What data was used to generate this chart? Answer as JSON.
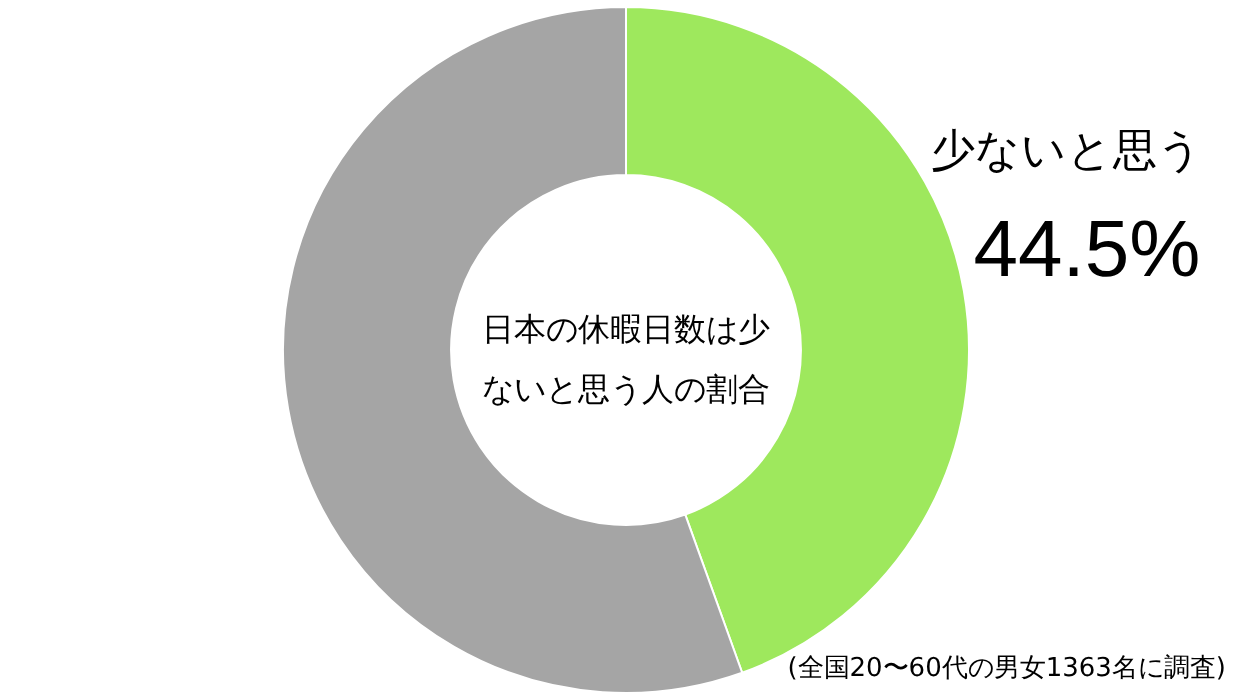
{
  "chart_data": {
    "type": "donut",
    "title": "日本の休暇日数は少ないと思う人の割合",
    "categories": [
      "少ないと思う",
      null
    ],
    "values": [
      44.5,
      55.5
    ],
    "colors": [
      "#9ee85d",
      "#a5a5a5"
    ],
    "value_labels": [
      "44.5%",
      null
    ],
    "annotations": [
      "(全国20〜60代の男女1363名に調査)"
    ],
    "legend": false
  }
}
